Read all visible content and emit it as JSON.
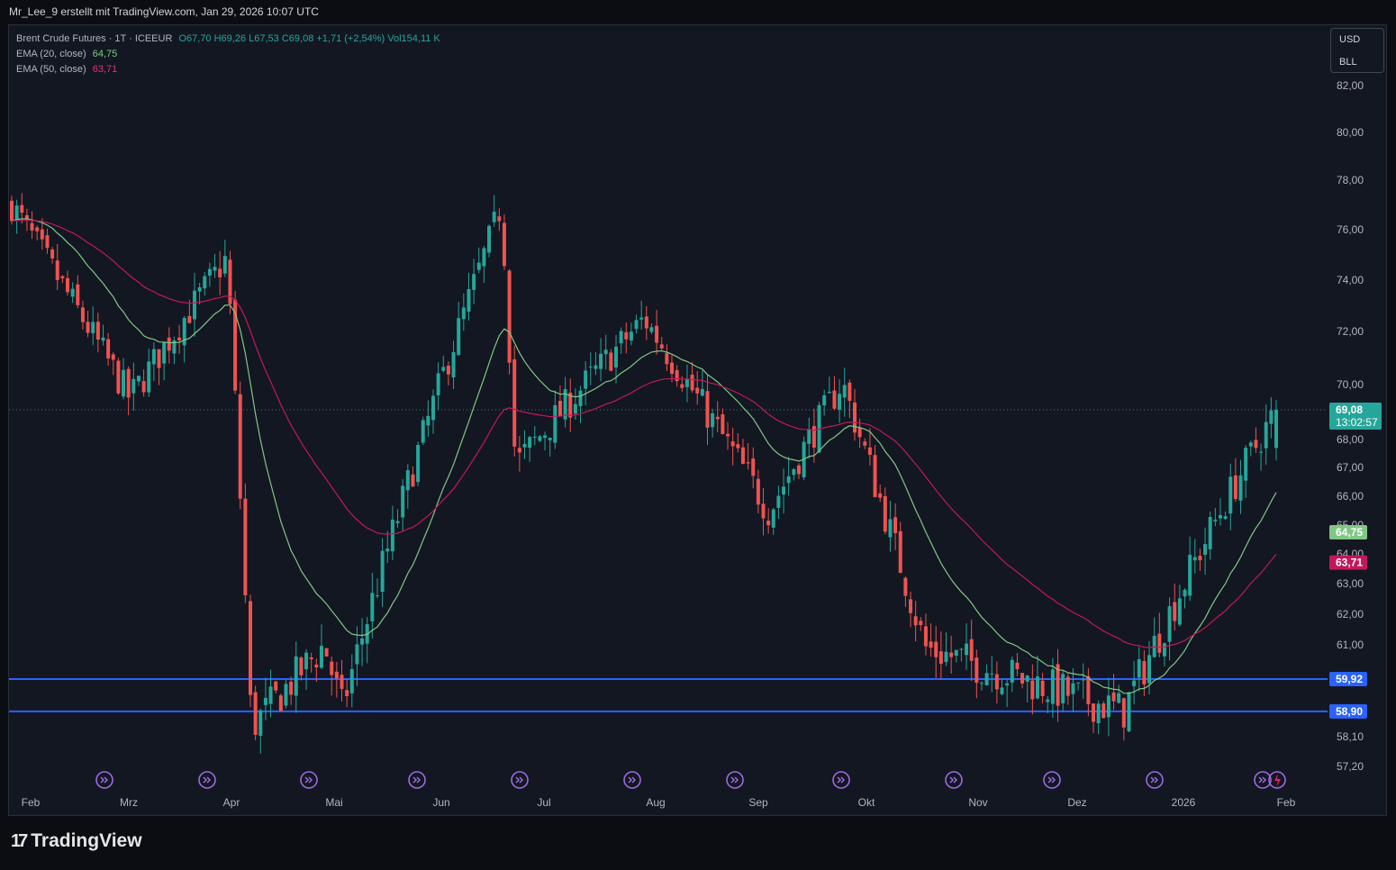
{
  "header": {
    "text": "Mr_Lee_9 erstellt mit TradingView.com, Jan 29, 2026 10:07 UTC"
  },
  "legend": {
    "symbol": "Brent Crude Futures · 1T · ICEEUR",
    "ohlc": "O67,70  H69,26  L67,53  C69,08  +1,71 (+2,54%)  Vol154,11 K",
    "ema20_label": "EMA (20, close)",
    "ema20_value": "64,75",
    "ema50_label": "EMA (50, close)",
    "ema50_value": "63,71"
  },
  "currency_box": {
    "currency": "USD",
    "unit": "BLL"
  },
  "branding": {
    "logo_mark": "17",
    "logo_text": "TradingView"
  },
  "colors": {
    "up": "#26a69a",
    "down": "#ef5350",
    "ema20": "#81c784",
    "ema50": "#c2185b",
    "hline": "#2962ff",
    "event": "#9c6ade"
  },
  "chart_data": {
    "type": "candlestick",
    "symbol": "Brent Crude Futures",
    "interval": "1T",
    "y_ticks": [
      "82,00",
      "80,00",
      "78,00",
      "76,00",
      "74,00",
      "72,00",
      "70,00",
      "68,00",
      "67,00",
      "66,00",
      "65,00",
      "64,00",
      "63,00",
      "62,00",
      "61,00",
      "58,10",
      "57,20"
    ],
    "x_ticks": [
      "Feb",
      "Mrz",
      "Apr",
      "Mai",
      "Jun",
      "Jul",
      "Aug",
      "Sep",
      "Okt",
      "Nov",
      "Dez",
      "2026",
      "Feb"
    ],
    "price_labels": [
      {
        "text": "69,08",
        "sub": "13:02:57",
        "value": 69.08,
        "color": "#26a69a"
      },
      {
        "text": "64,75",
        "value": 64.75,
        "color": "#81c784"
      },
      {
        "text": "63,71",
        "value": 63.71,
        "color": "#c2185b"
      },
      {
        "text": "59,92",
        "value": 59.92,
        "color": "#2962ff"
      },
      {
        "text": "58,90",
        "value": 58.9,
        "color": "#2962ff"
      }
    ],
    "horizontal_lines": [
      59.92,
      58.9
    ],
    "last_close": 69.08,
    "key_points": [
      {
        "date": "Jan 30 2025",
        "close": 77.0
      },
      {
        "date": "Mar 5 2025",
        "close": 69.5
      },
      {
        "date": "Apr 2 2025",
        "close": 74.9
      },
      {
        "date": "Apr 9 2025",
        "close": 58.4
      },
      {
        "date": "Apr 30 2025",
        "close": 61.0
      },
      {
        "date": "May 5 2025",
        "close": 59.0
      },
      {
        "date": "Jun 13 2025",
        "close": 74.2
      },
      {
        "date": "Jun 20 2025",
        "close": 77.0
      },
      {
        "date": "Jun 24 2025",
        "close": 67.1
      },
      {
        "date": "Jul 31 2025",
        "close": 72.5
      },
      {
        "date": "Sep 5 2025",
        "close": 65.5
      },
      {
        "date": "Sep 26 2025",
        "close": 70.1
      },
      {
        "date": "Oct 20 2025",
        "close": 60.9
      },
      {
        "date": "Dec 16 2025",
        "close": 58.9
      },
      {
        "date": "Jan 13 2026",
        "close": 65.5
      },
      {
        "date": "Jan 29 2026",
        "close": 69.08
      }
    ],
    "ema20_last": 64.75,
    "ema50_last": 63.71
  }
}
